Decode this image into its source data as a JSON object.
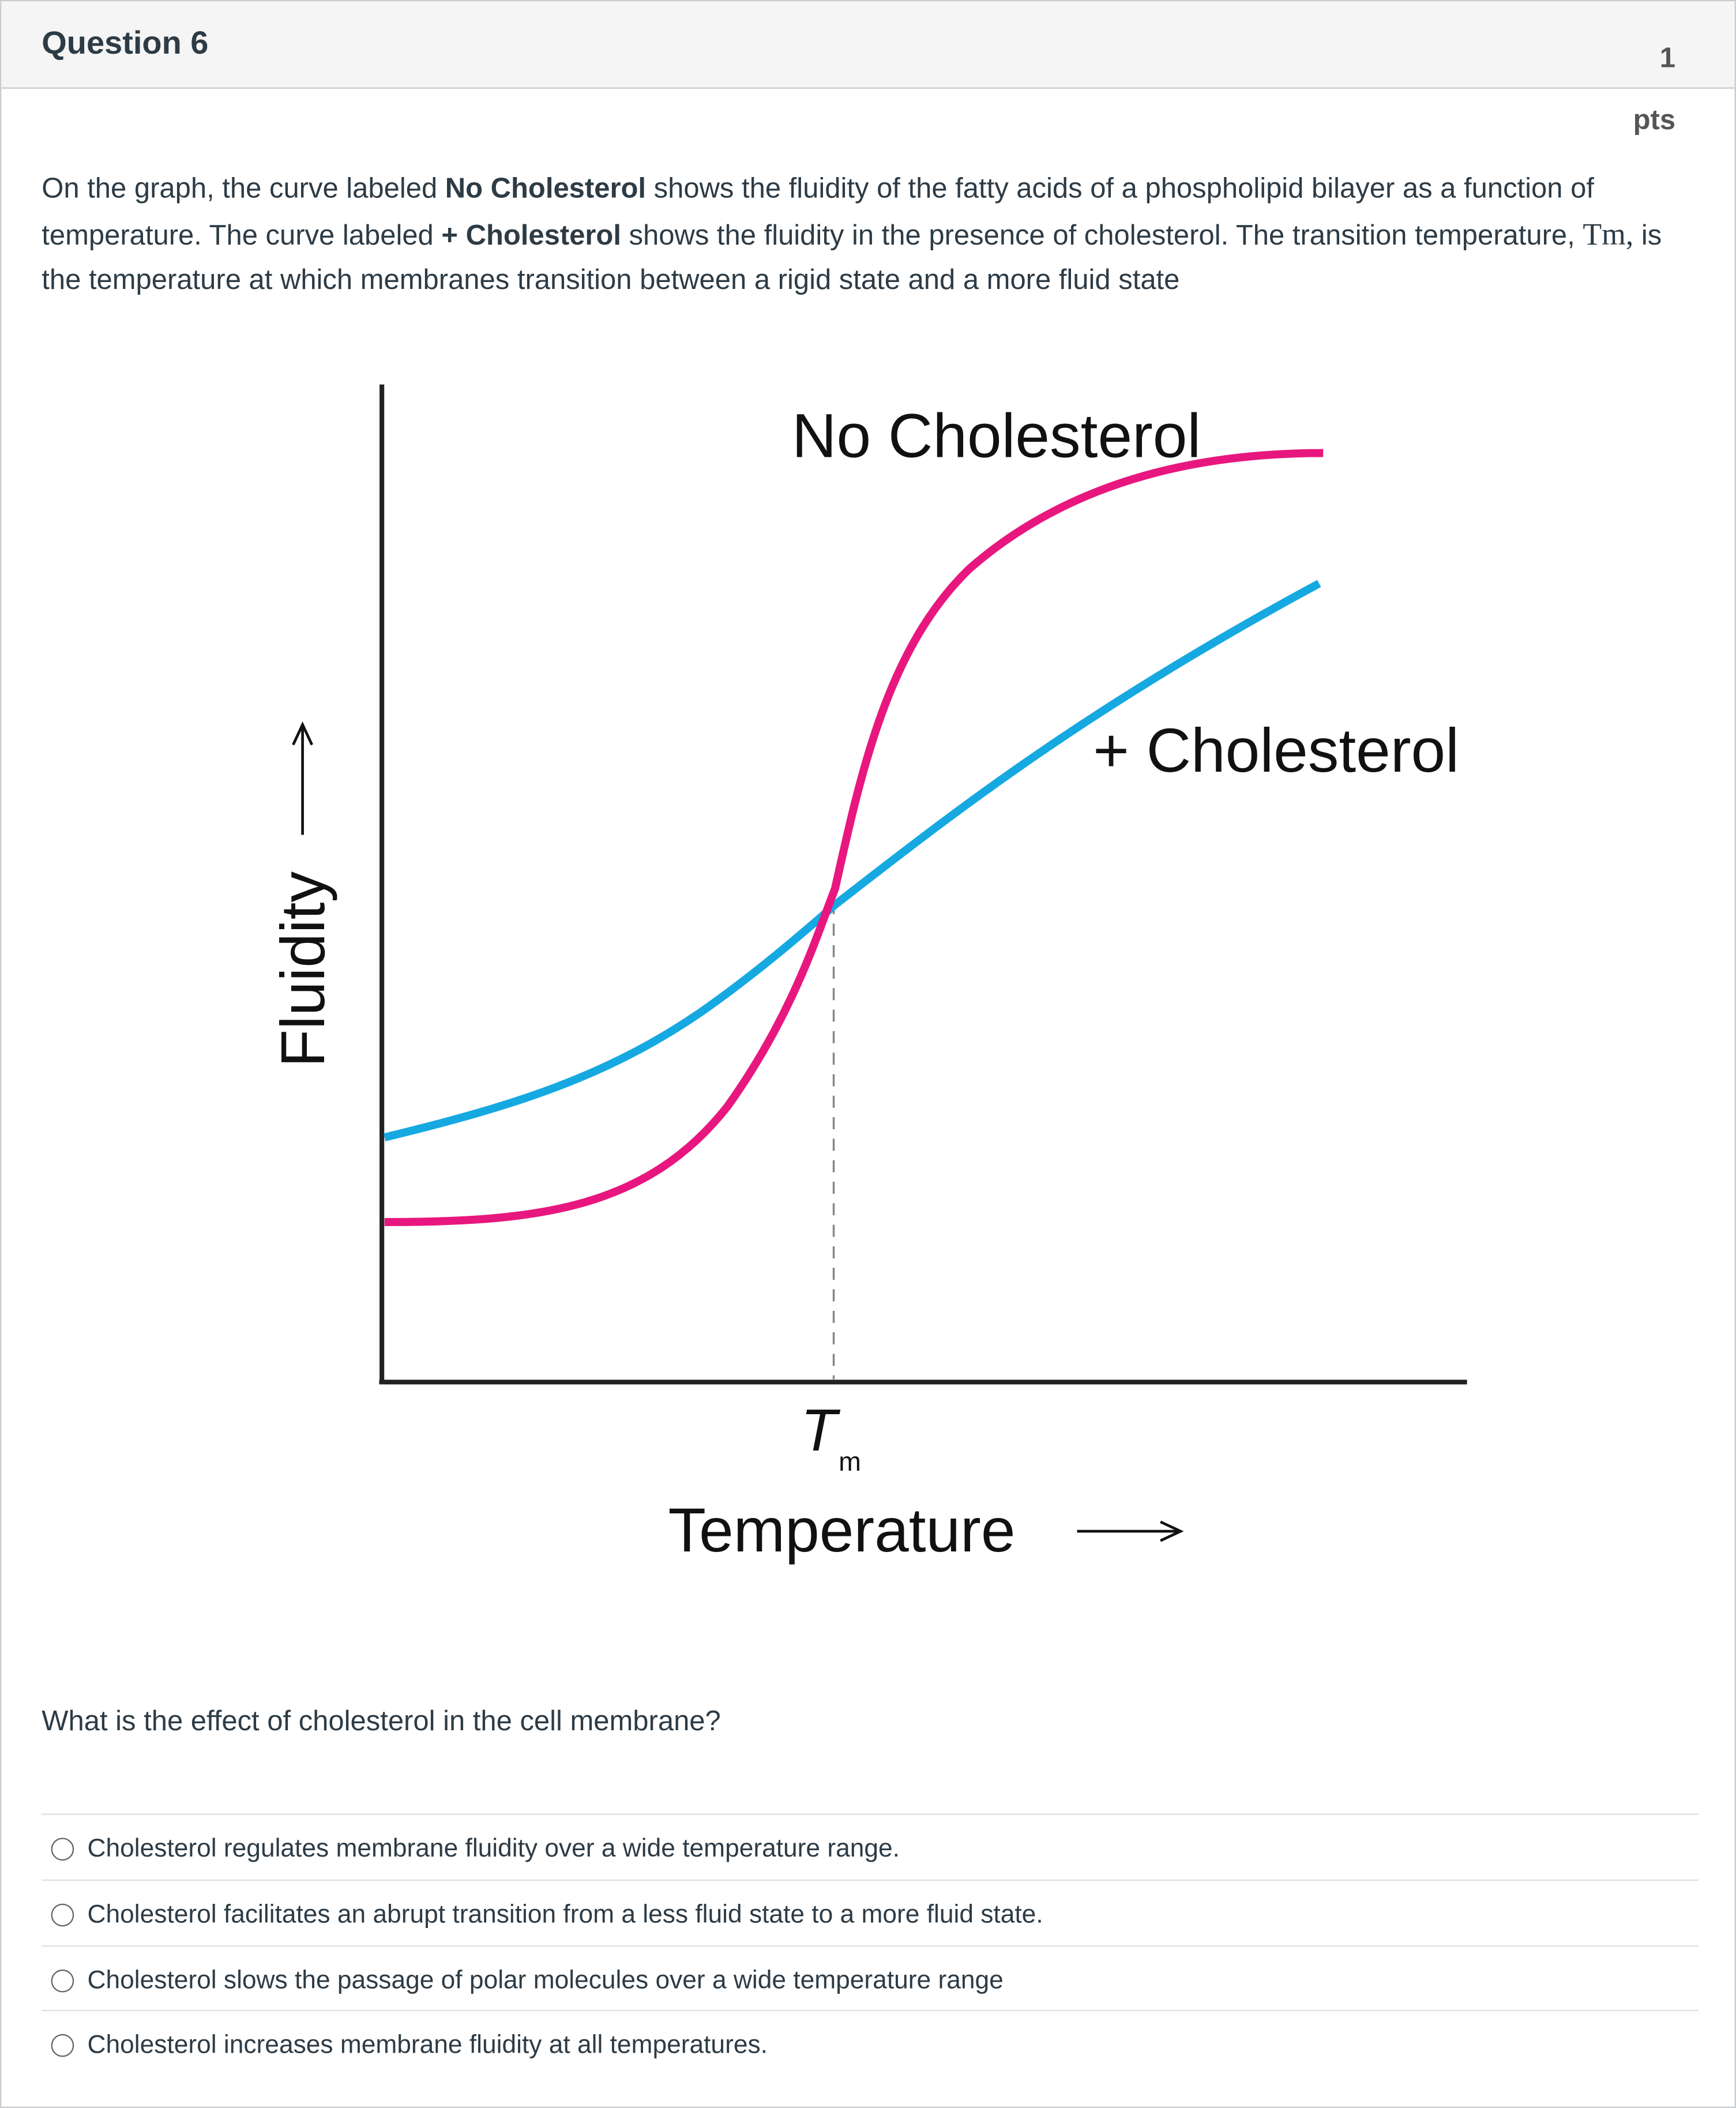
{
  "header": {
    "title": "Question 6",
    "points": "1",
    "points_unit": "pts"
  },
  "intro": [
    "On the graph, the curve labeled ",
    "No Cholesterol",
    " shows the fluidity of the fatty acids of a phospholipid bilayer as a function of temperature. The curve labeled ",
    "+ Cholesterol",
    " shows the fluidity in the presence of cholesterol. The transition temperature, ",
    "Tm,",
    " is the temperature at which membranes transition between a rigid state and a more fluid state"
  ],
  "figure": {
    "curve_labels": [
      "No Cholesterol",
      "+ Cholesterol"
    ],
    "tm": "T",
    "tm_sub": "m",
    "x_label": "Temperature",
    "y_label": "Fluidity"
  },
  "question": "What is the effect of cholesterol in the cell membrane?",
  "options": [
    "Cholesterol regulates membrane fluidity over a wide temperature range.",
    "Cholesterol facilitates an abrupt transition from a less fluid state to a more fluid state.",
    "Cholesterol slows the passage of polar molecules over a wide temperature range",
    "Cholesterol increases membrane fluidity at all temperatures."
  ]
}
